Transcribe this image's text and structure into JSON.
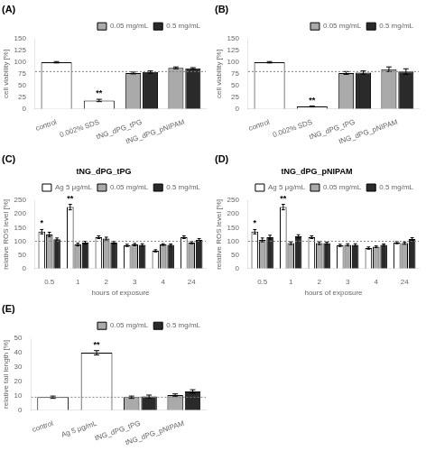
{
  "chart_data": [
    {
      "type": "bar",
      "panel_label": "(A)",
      "categories": [
        "control",
        "0.002% SDS",
        "tNG_dPG_tPG",
        "tNG_dPG_pNIPAM"
      ],
      "ylabel": "cell viability [%]",
      "ylim": [
        0,
        150
      ],
      "yticks": [
        0,
        25,
        50,
        75,
        100,
        125,
        150
      ],
      "grid": false,
      "legend": "upper right",
      "hline": 80,
      "series": [
        {
          "color": "#ffffff",
          "values": [
            100,
            18,
            null,
            null
          ],
          "errors": [
            1.5,
            2.5,
            null,
            null
          ]
        },
        {
          "name": "0.05 mg/mL",
          "color": "#aaaaaa",
          "values": [
            null,
            null,
            77,
            88
          ],
          "errors": [
            null,
            null,
            2.0,
            2.0
          ]
        },
        {
          "name": "0.5 mg/mL",
          "color": "#2a2a2a",
          "values": [
            null,
            null,
            79,
            87
          ],
          "errors": [
            null,
            null,
            2.5,
            1.5
          ]
        }
      ],
      "annotations": [
        {
          "text": "**",
          "category": "0.002% SDS"
        }
      ]
    },
    {
      "type": "bar",
      "panel_label": "(B)",
      "categories": [
        "control",
        "0.002% SDS",
        "tNG_dPG_tPG",
        "tNG_dPG_pNIPAM"
      ],
      "ylabel": "cell viability [%]",
      "ylim": [
        0,
        150
      ],
      "yticks": [
        0,
        25,
        50,
        75,
        100,
        125,
        150
      ],
      "grid": false,
      "legend": "upper right",
      "hline": 80,
      "series": [
        {
          "color": "#ffffff",
          "values": [
            100,
            5,
            null,
            null
          ],
          "errors": [
            1.5,
            1.0,
            null,
            null
          ]
        },
        {
          "name": "0.05 mg/mL",
          "color": "#aaaaaa",
          "values": [
            null,
            null,
            77,
            85
          ],
          "errors": [
            null,
            null,
            3.0,
            5.0
          ]
        },
        {
          "name": "0.5 mg/mL",
          "color": "#2a2a2a",
          "values": [
            null,
            null,
            78,
            80
          ],
          "errors": [
            null,
            null,
            3.5,
            6.0
          ]
        }
      ],
      "annotations": [
        {
          "text": "**",
          "category": "0.002% SDS"
        }
      ]
    },
    {
      "type": "bar",
      "panel_label": "(C)",
      "title": "tNG_dPG_tPG",
      "categories": [
        "0.5",
        "1",
        "2",
        "3",
        "4",
        "24"
      ],
      "xlabel": "hours of exposure",
      "ylabel": "relative ROS level [%]",
      "ylim": [
        0,
        250
      ],
      "yticks": [
        0,
        50,
        100,
        150,
        200,
        250
      ],
      "grid": false,
      "legend": "upper right",
      "hline": 100,
      "series": [
        {
          "name": "Ag 5 μg/mL",
          "color": "#ffffff",
          "values": [
            135,
            225,
            115,
            85,
            65,
            115
          ],
          "errors": [
            8,
            10,
            5,
            4,
            4,
            5
          ]
        },
        {
          "name": "0.05 mg/mL",
          "color": "#aaaaaa",
          "values": [
            125,
            88,
            110,
            88,
            88,
            95
          ],
          "errors": [
            8,
            5,
            5,
            4,
            3,
            4
          ]
        },
        {
          "name": "0.5 mg/mL",
          "color": "#2a2a2a",
          "values": [
            107,
            95,
            95,
            87,
            87,
            105
          ],
          "errors": [
            5,
            5,
            4,
            4,
            3,
            5
          ]
        }
      ],
      "annotations": [
        {
          "text": "*",
          "category": "0.5",
          "series": "Ag 5 μg/mL"
        },
        {
          "text": "**",
          "category": "1",
          "series": "Ag 5 μg/mL"
        }
      ]
    },
    {
      "type": "bar",
      "panel_label": "(D)",
      "title": "tNG_dPG_pNIPAM",
      "categories": [
        "0.5",
        "1",
        "2",
        "3",
        "4",
        "24"
      ],
      "xlabel": "hours of exposure",
      "ylabel": "relative ROS level [%]",
      "ylim": [
        0,
        250
      ],
      "yticks": [
        0,
        50,
        100,
        150,
        200,
        250
      ],
      "grid": false,
      "legend": "upper right",
      "hline": 100,
      "series": [
        {
          "name": "Ag 5 μg/mL",
          "color": "#ffffff",
          "values": [
            135,
            225,
            115,
            85,
            75,
            95
          ],
          "errors": [
            8,
            10,
            5,
            4,
            4,
            4
          ]
        },
        {
          "name": "0.05 mg/mL",
          "color": "#aaaaaa",
          "values": [
            105,
            93,
            93,
            87,
            80,
            93
          ],
          "errors": [
            7,
            5,
            5,
            4,
            3,
            4
          ]
        },
        {
          "name": "0.5 mg/mL",
          "color": "#2a2a2a",
          "values": [
            115,
            118,
            93,
            87,
            87,
            108
          ],
          "errors": [
            7,
            6,
            4,
            4,
            3,
            5
          ]
        }
      ],
      "annotations": [
        {
          "text": "*",
          "category": "0.5",
          "series": "Ag 5 μg/mL"
        },
        {
          "text": "**",
          "category": "1",
          "series": "Ag 5 μg/mL"
        }
      ]
    },
    {
      "type": "bar",
      "panel_label": "(E)",
      "categories": [
        "control",
        "Ag 5 μg/mL",
        "tNG_dPG_tPG",
        "tNG_dPG_pNIPAM"
      ],
      "ylabel": "relative tail length [%]",
      "ylim": [
        0,
        50
      ],
      "yticks": [
        0,
        10,
        20,
        30,
        40,
        50
      ],
      "grid": false,
      "legend": "upper right",
      "hline": 9,
      "series": [
        {
          "color": "#ffffff",
          "values": [
            9,
            40,
            null,
            null
          ],
          "errors": [
            0.8,
            1.5,
            null,
            null
          ]
        },
        {
          "name": "0.05 mg/mL",
          "color": "#aaaaaa",
          "values": [
            null,
            null,
            9.0,
            10.5
          ],
          "errors": [
            null,
            null,
            0.8,
            0.8
          ]
        },
        {
          "name": "0.5 mg/mL",
          "color": "#2a2a2a",
          "values": [
            null,
            null,
            9.5,
            13.0
          ],
          "errors": [
            null,
            null,
            1.0,
            1.2
          ]
        }
      ],
      "annotations": [
        {
          "text": "**",
          "category": "Ag 5 μg/mL"
        }
      ]
    }
  ]
}
